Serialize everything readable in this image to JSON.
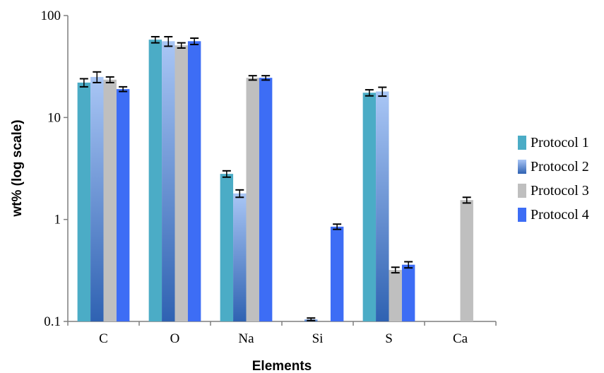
{
  "chart_data": {
    "type": "bar",
    "scale": "log",
    "title": "",
    "xlabel": "Elements",
    "ylabel": "wt% (log scale)",
    "ylim": [
      0.1,
      100
    ],
    "yticks": [
      "0.1",
      "1",
      "10",
      "100"
    ],
    "grid": false,
    "legend_position": "right",
    "categories": [
      "C",
      "O",
      "Na",
      "Si",
      "S",
      "Ca"
    ],
    "series": [
      {
        "name": "Protocol 1",
        "color": "#4bacc6",
        "values": [
          22,
          58,
          2.8,
          null,
          17.5,
          null
        ],
        "errors": [
          2,
          4,
          0.2,
          null,
          1.2,
          null
        ]
      },
      {
        "name": "Protocol 2",
        "color": "#6f9ce0",
        "values": [
          25,
          56,
          1.8,
          0.105,
          18,
          null
        ],
        "errors": [
          3,
          6,
          0.15,
          0.003,
          1.8,
          null
        ]
      },
      {
        "name": "Protocol 3",
        "color": "#bfbfbf",
        "values": [
          23.5,
          51,
          24.5,
          null,
          0.32,
          1.55
        ],
        "errors": [
          1.5,
          3,
          1.2,
          null,
          0.02,
          0.1
        ]
      },
      {
        "name": "Protocol 4",
        "color": "#3d6df5",
        "values": [
          19,
          56,
          24.5,
          0.85,
          0.36,
          null
        ],
        "errors": [
          1,
          4,
          1.2,
          0.05,
          0.025,
          null
        ]
      }
    ]
  }
}
